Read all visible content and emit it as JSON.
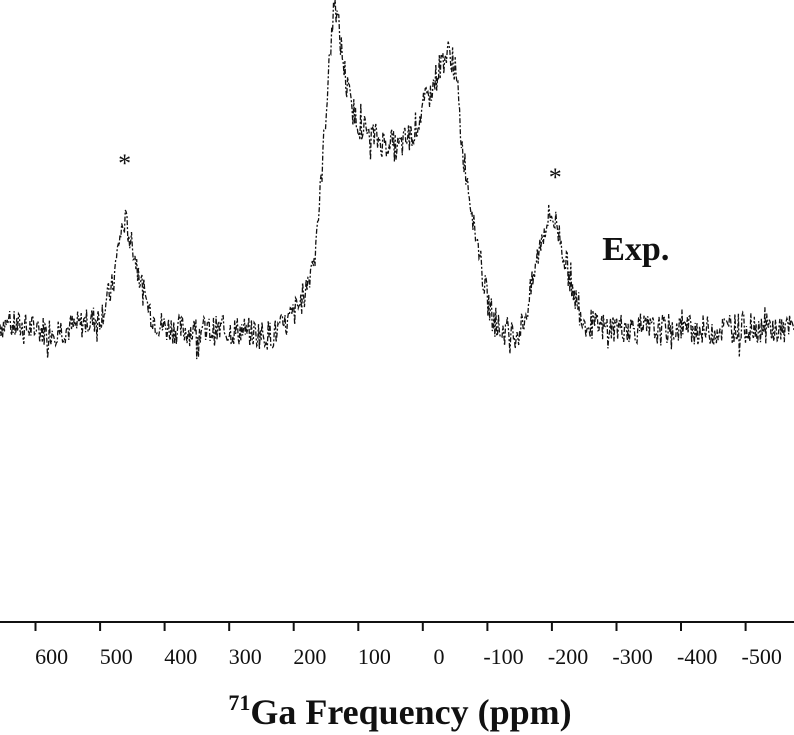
{
  "chart_data": {
    "type": "line",
    "x_range": [
      655,
      -575
    ],
    "x_reversed": true,
    "xticks": [
      600,
      500,
      400,
      300,
      200,
      100,
      0,
      -100,
      -200,
      -300,
      -400,
      -500
    ],
    "xtick_labels": [
      "600",
      "500",
      "400",
      "300",
      "200",
      "100",
      "0",
      "-100",
      "-200",
      "-300",
      "-400",
      "-500"
    ],
    "xlabel_sup": "71",
    "xlabel_main": "Ga Frequency (ppm)",
    "ylim": [
      0,
      1
    ],
    "series": [
      {
        "x": [
          655,
          620,
          580,
          540,
          500,
          480,
          470,
          462,
          455,
          445,
          430,
          415,
          400,
          360,
          320,
          280,
          250,
          232,
          215,
          200,
          190,
          180,
          170,
          160,
          152,
          145,
          140,
          136,
          132,
          128,
          122,
          112,
          100,
          85,
          70,
          60,
          50,
          40,
          30,
          20,
          10,
          0,
          -10,
          -20,
          -30,
          -38,
          -45,
          -50,
          -55,
          -60,
          -70,
          -80,
          -90,
          -100,
          -110,
          -120,
          -130,
          -140,
          -150,
          -160,
          -170,
          -180,
          -190,
          -198,
          -205,
          -212,
          -220,
          -230,
          -240,
          -250,
          -260,
          -270,
          -290,
          -320,
          -360,
          -400,
          -440,
          -480,
          -520,
          -560,
          -575
        ],
        "y": [
          0.07,
          0.06,
          0.05,
          0.06,
          0.09,
          0.18,
          0.32,
          0.37,
          0.34,
          0.26,
          0.14,
          0.08,
          0.06,
          0.05,
          0.05,
          0.05,
          0.04,
          0.04,
          0.06,
          0.1,
          0.13,
          0.18,
          0.26,
          0.42,
          0.64,
          0.83,
          0.95,
          1.0,
          0.96,
          0.9,
          0.82,
          0.71,
          0.66,
          0.63,
          0.61,
          0.6,
          0.6,
          0.58,
          0.6,
          0.62,
          0.65,
          0.7,
          0.74,
          0.79,
          0.84,
          0.86,
          0.85,
          0.81,
          0.73,
          0.6,
          0.48,
          0.36,
          0.24,
          0.14,
          0.08,
          0.05,
          0.05,
          0.04,
          0.05,
          0.1,
          0.19,
          0.29,
          0.36,
          0.39,
          0.37,
          0.33,
          0.26,
          0.19,
          0.12,
          0.08,
          0.07,
          0.06,
          0.06,
          0.06,
          0.05,
          0.06,
          0.05,
          0.06,
          0.06,
          0.05,
          0.06
        ]
      }
    ],
    "annotations": [
      {
        "text": "*",
        "x": 462
      },
      {
        "text": "*",
        "x": -205
      },
      {
        "text": "Exp.",
        "x": -330
      }
    ],
    "grid": false
  }
}
